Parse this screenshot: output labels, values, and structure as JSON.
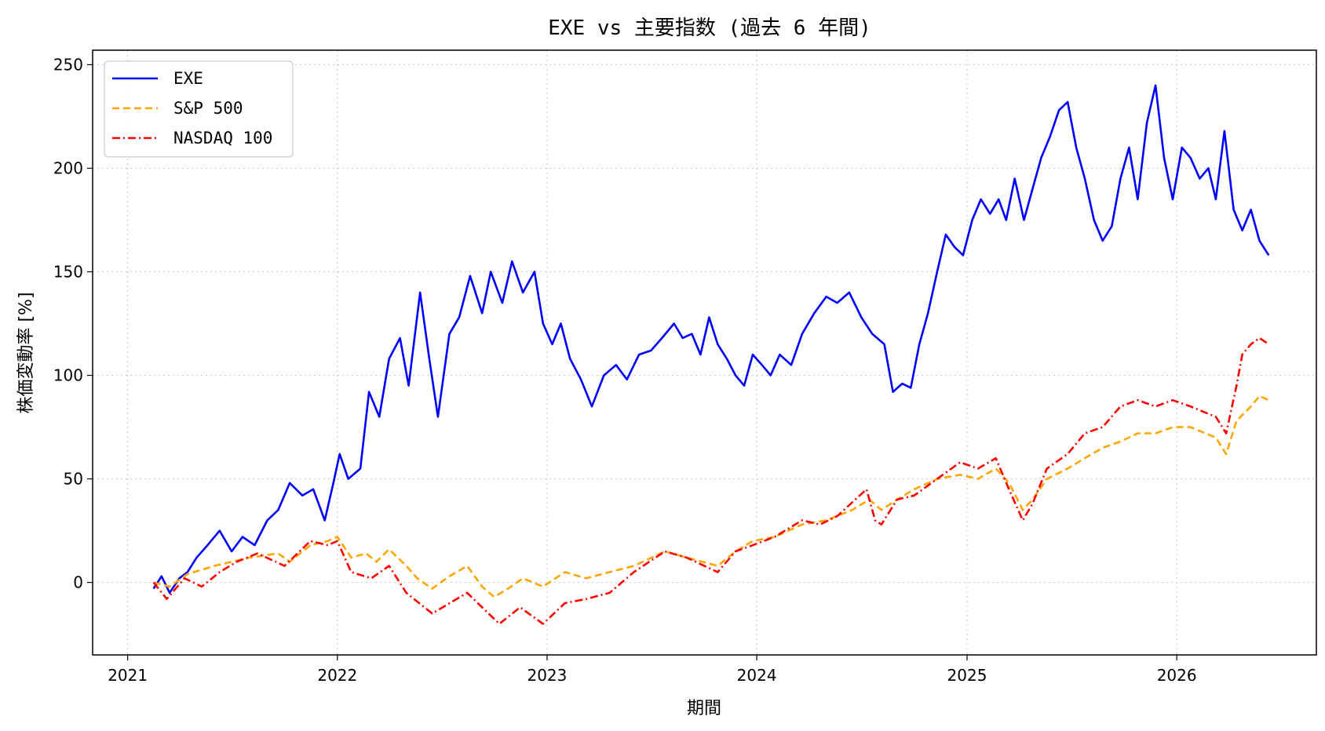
{
  "chart_data": {
    "type": "line",
    "title": "EXE vs 主要指数 (過去 6 年間)",
    "xlabel": "期間",
    "ylabel": "株価変動率 [%]",
    "x_ticks": [
      "2021",
      "2022",
      "2023",
      "2024",
      "2025",
      "2026"
    ],
    "y_ticks": [
      0,
      50,
      100,
      150,
      200,
      250
    ],
    "xlim": [
      "2020-11-01",
      "2026-09-01"
    ],
    "ylim": [
      -35,
      257
    ],
    "grid": true,
    "legend_position": "top-left",
    "series": [
      {
        "name": "EXE",
        "color": "#0000ff",
        "style": "solid",
        "points": [
          [
            "2021-02-15",
            -3
          ],
          [
            "2021-03-01",
            3
          ],
          [
            "2021-03-15",
            -5
          ],
          [
            "2021-04-01",
            2
          ],
          [
            "2021-04-15",
            5
          ],
          [
            "2021-05-01",
            12
          ],
          [
            "2021-05-20",
            18
          ],
          [
            "2021-06-10",
            25
          ],
          [
            "2021-07-01",
            15
          ],
          [
            "2021-07-20",
            22
          ],
          [
            "2021-08-10",
            18
          ],
          [
            "2021-09-01",
            30
          ],
          [
            "2021-09-20",
            35
          ],
          [
            "2021-10-10",
            48
          ],
          [
            "2021-11-01",
            42
          ],
          [
            "2021-11-20",
            45
          ],
          [
            "2021-12-10",
            30
          ],
          [
            "2021-12-25",
            48
          ],
          [
            "2022-01-05",
            62
          ],
          [
            "2022-01-20",
            50
          ],
          [
            "2022-02-10",
            55
          ],
          [
            "2022-02-25",
            92
          ],
          [
            "2022-03-15",
            80
          ],
          [
            "2022-04-01",
            108
          ],
          [
            "2022-04-20",
            118
          ],
          [
            "2022-05-05",
            95
          ],
          [
            "2022-05-25",
            140
          ],
          [
            "2022-06-10",
            108
          ],
          [
            "2022-06-25",
            80
          ],
          [
            "2022-07-15",
            120
          ],
          [
            "2022-08-01",
            128
          ],
          [
            "2022-08-20",
            148
          ],
          [
            "2022-09-10",
            130
          ],
          [
            "2022-09-25",
            150
          ],
          [
            "2022-10-15",
            135
          ],
          [
            "2022-11-01",
            155
          ],
          [
            "2022-11-20",
            140
          ],
          [
            "2022-12-10",
            150
          ],
          [
            "2022-12-25",
            125
          ],
          [
            "2023-01-10",
            115
          ],
          [
            "2023-01-25",
            125
          ],
          [
            "2023-02-10",
            108
          ],
          [
            "2023-03-01",
            98
          ],
          [
            "2023-03-20",
            85
          ],
          [
            "2023-04-10",
            100
          ],
          [
            "2023-05-01",
            105
          ],
          [
            "2023-05-20",
            98
          ],
          [
            "2023-06-10",
            110
          ],
          [
            "2023-07-01",
            112
          ],
          [
            "2023-07-20",
            118
          ],
          [
            "2023-08-10",
            125
          ],
          [
            "2023-08-25",
            118
          ],
          [
            "2023-09-10",
            120
          ],
          [
            "2023-09-25",
            110
          ],
          [
            "2023-10-10",
            128
          ],
          [
            "2023-10-25",
            115
          ],
          [
            "2023-11-10",
            108
          ],
          [
            "2023-11-25",
            100
          ],
          [
            "2023-12-10",
            95
          ],
          [
            "2023-12-25",
            110
          ],
          [
            "2024-01-10",
            105
          ],
          [
            "2024-01-25",
            100
          ],
          [
            "2024-02-10",
            110
          ],
          [
            "2024-03-01",
            105
          ],
          [
            "2024-03-20",
            120
          ],
          [
            "2024-04-10",
            130
          ],
          [
            "2024-05-01",
            138
          ],
          [
            "2024-05-20",
            135
          ],
          [
            "2024-06-10",
            140
          ],
          [
            "2024-07-01",
            128
          ],
          [
            "2024-07-20",
            120
          ],
          [
            "2024-08-10",
            115
          ],
          [
            "2024-08-25",
            92
          ],
          [
            "2024-09-10",
            96
          ],
          [
            "2024-09-25",
            94
          ],
          [
            "2024-10-10",
            115
          ],
          [
            "2024-10-25",
            130
          ],
          [
            "2024-11-10",
            150
          ],
          [
            "2024-11-25",
            168
          ],
          [
            "2024-12-10",
            162
          ],
          [
            "2024-12-25",
            158
          ],
          [
            "2025-01-10",
            175
          ],
          [
            "2025-01-25",
            185
          ],
          [
            "2025-02-10",
            178
          ],
          [
            "2025-02-25",
            185
          ],
          [
            "2025-03-10",
            175
          ],
          [
            "2025-03-25",
            195
          ],
          [
            "2025-04-10",
            175
          ],
          [
            "2025-04-25",
            190
          ],
          [
            "2025-05-10",
            205
          ],
          [
            "2025-05-25",
            215
          ],
          [
            "2025-06-10",
            228
          ],
          [
            "2025-06-25",
            232
          ],
          [
            "2025-07-10",
            210
          ],
          [
            "2025-07-25",
            195
          ],
          [
            "2025-08-10",
            175
          ],
          [
            "2025-08-25",
            165
          ],
          [
            "2025-09-10",
            172
          ],
          [
            "2025-09-25",
            195
          ],
          [
            "2025-10-10",
            210
          ],
          [
            "2025-10-25",
            185
          ],
          [
            "2025-11-10",
            222
          ],
          [
            "2025-11-25",
            240
          ],
          [
            "2025-12-10",
            205
          ],
          [
            "2025-12-25",
            185
          ],
          [
            "2026-01-10",
            210
          ],
          [
            "2026-01-25",
            205
          ],
          [
            "2026-02-10",
            195
          ],
          [
            "2026-02-25",
            200
          ],
          [
            "2026-03-10",
            185
          ],
          [
            "2026-03-25",
            218
          ],
          [
            "2026-04-10",
            180
          ],
          [
            "2026-04-25",
            170
          ],
          [
            "2026-05-10",
            180
          ],
          [
            "2026-05-25",
            165
          ],
          [
            "2026-06-10",
            158
          ]
        ]
      },
      {
        "name": "S&P 500",
        "color": "#ffa500",
        "style": "dashed",
        "points": [
          [
            "2021-02-15",
            0
          ],
          [
            "2021-03-15",
            -2
          ],
          [
            "2021-04-15",
            4
          ],
          [
            "2021-06-01",
            8
          ],
          [
            "2021-08-01",
            12
          ],
          [
            "2021-09-20",
            14
          ],
          [
            "2021-10-10",
            10
          ],
          [
            "2021-11-15",
            18
          ],
          [
            "2021-12-15",
            20
          ],
          [
            "2022-01-01",
            22
          ],
          [
            "2022-01-25",
            12
          ],
          [
            "2022-02-20",
            14
          ],
          [
            "2022-03-10",
            10
          ],
          [
            "2022-04-01",
            16
          ],
          [
            "2022-05-01",
            8
          ],
          [
            "2022-05-20",
            2
          ],
          [
            "2022-06-15",
            -3
          ],
          [
            "2022-07-15",
            3
          ],
          [
            "2022-08-15",
            8
          ],
          [
            "2022-09-10",
            -2
          ],
          [
            "2022-10-01",
            -7
          ],
          [
            "2022-10-25",
            -3
          ],
          [
            "2022-11-20",
            2
          ],
          [
            "2022-12-25",
            -2
          ],
          [
            "2023-02-01",
            5
          ],
          [
            "2023-03-10",
            2
          ],
          [
            "2023-04-20",
            5
          ],
          [
            "2023-06-01",
            8
          ],
          [
            "2023-07-25",
            15
          ],
          [
            "2023-09-01",
            12
          ],
          [
            "2023-10-25",
            8
          ],
          [
            "2023-11-25",
            15
          ],
          [
            "2023-12-25",
            20
          ],
          [
            "2024-02-01",
            22
          ],
          [
            "2024-03-20",
            28
          ],
          [
            "2024-05-01",
            30
          ],
          [
            "2024-06-15",
            35
          ],
          [
            "2024-07-15",
            40
          ],
          [
            "2024-08-05",
            35
          ],
          [
            "2024-09-01",
            40
          ],
          [
            "2024-10-01",
            45
          ],
          [
            "2024-11-10",
            50
          ],
          [
            "2024-12-20",
            52
          ],
          [
            "2025-01-20",
            50
          ],
          [
            "2025-02-20",
            55
          ],
          [
            "2025-03-15",
            48
          ],
          [
            "2025-04-08",
            35
          ],
          [
            "2025-04-25",
            40
          ],
          [
            "2025-05-20",
            50
          ],
          [
            "2025-06-25",
            55
          ],
          [
            "2025-07-25",
            60
          ],
          [
            "2025-08-25",
            65
          ],
          [
            "2025-09-25",
            68
          ],
          [
            "2025-10-25",
            72
          ],
          [
            "2025-11-25",
            72
          ],
          [
            "2025-12-25",
            75
          ],
          [
            "2026-01-25",
            75
          ],
          [
            "2026-02-20",
            72
          ],
          [
            "2026-03-10",
            70
          ],
          [
            "2026-03-28",
            62
          ],
          [
            "2026-04-15",
            78
          ],
          [
            "2026-05-10",
            85
          ],
          [
            "2026-05-25",
            90
          ],
          [
            "2026-06-10",
            88
          ]
        ]
      },
      {
        "name": "NASDAQ 100",
        "color": "#ff0000",
        "style": "dashdot",
        "points": [
          [
            "2021-02-15",
            0
          ],
          [
            "2021-03-10",
            -8
          ],
          [
            "2021-04-10",
            2
          ],
          [
            "2021-05-10",
            -2
          ],
          [
            "2021-06-10",
            5
          ],
          [
            "2021-07-10",
            10
          ],
          [
            "2021-08-15",
            14
          ],
          [
            "2021-10-01",
            8
          ],
          [
            "2021-11-15",
            20
          ],
          [
            "2021-12-15",
            18
          ],
          [
            "2022-01-01",
            20
          ],
          [
            "2022-01-25",
            5
          ],
          [
            "2022-03-01",
            2
          ],
          [
            "2022-04-01",
            8
          ],
          [
            "2022-05-01",
            -5
          ],
          [
            "2022-06-15",
            -15
          ],
          [
            "2022-08-15",
            -5
          ],
          [
            "2022-09-10",
            -12
          ],
          [
            "2022-10-10",
            -20
          ],
          [
            "2022-11-15",
            -12
          ],
          [
            "2022-12-25",
            -20
          ],
          [
            "2023-02-01",
            -10
          ],
          [
            "2023-03-10",
            -8
          ],
          [
            "2023-04-20",
            -5
          ],
          [
            "2023-06-01",
            5
          ],
          [
            "2023-07-25",
            15
          ],
          [
            "2023-09-01",
            12
          ],
          [
            "2023-10-25",
            5
          ],
          [
            "2023-11-25",
            15
          ],
          [
            "2023-12-25",
            18
          ],
          [
            "2024-02-01",
            22
          ],
          [
            "2024-03-20",
            30
          ],
          [
            "2024-04-20",
            28
          ],
          [
            "2024-05-20",
            32
          ],
          [
            "2024-07-10",
            45
          ],
          [
            "2024-07-25",
            30
          ],
          [
            "2024-08-05",
            28
          ],
          [
            "2024-09-01",
            40
          ],
          [
            "2024-10-01",
            42
          ],
          [
            "2024-11-10",
            50
          ],
          [
            "2024-12-20",
            58
          ],
          [
            "2025-01-20",
            55
          ],
          [
            "2025-02-20",
            60
          ],
          [
            "2025-03-15",
            45
          ],
          [
            "2025-04-08",
            30
          ],
          [
            "2025-04-25",
            38
          ],
          [
            "2025-05-20",
            55
          ],
          [
            "2025-06-25",
            62
          ],
          [
            "2025-07-25",
            72
          ],
          [
            "2025-08-25",
            75
          ],
          [
            "2025-09-25",
            85
          ],
          [
            "2025-10-25",
            88
          ],
          [
            "2025-11-25",
            85
          ],
          [
            "2025-12-25",
            88
          ],
          [
            "2026-01-25",
            85
          ],
          [
            "2026-02-20",
            82
          ],
          [
            "2026-03-10",
            80
          ],
          [
            "2026-03-28",
            72
          ],
          [
            "2026-04-15",
            95
          ],
          [
            "2026-04-25",
            110
          ],
          [
            "2026-05-10",
            115
          ],
          [
            "2026-05-25",
            118
          ],
          [
            "2026-06-10",
            115
          ]
        ]
      }
    ]
  }
}
